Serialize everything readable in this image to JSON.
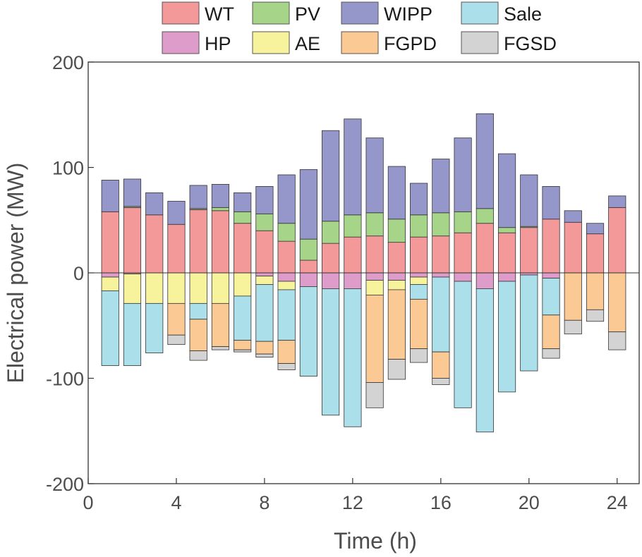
{
  "chart_data": {
    "type": "bar",
    "stacked": true,
    "xlabel": "Time (h)",
    "ylabel": "Electrical power (MW)",
    "xlim": [
      0,
      25
    ],
    "ylim": [
      -200,
      200
    ],
    "x_ticks": [
      0,
      4,
      8,
      12,
      16,
      20,
      24
    ],
    "y_ticks": [
      -200,
      -100,
      0,
      100,
      200
    ],
    "x": [
      1,
      2,
      3,
      4,
      5,
      6,
      7,
      8,
      9,
      10,
      11,
      12,
      13,
      14,
      15,
      16,
      17,
      18,
      19,
      20,
      21,
      22,
      23,
      24
    ],
    "legend_position": "top",
    "grid": false,
    "positive_series": [
      {
        "name": "WT",
        "color": "#f4999a",
        "values": [
          58,
          62,
          55,
          46,
          60,
          59,
          47,
          40,
          30,
          12,
          28,
          34,
          35,
          29,
          34,
          35,
          38,
          47,
          38,
          43,
          51,
          48,
          37,
          62
        ]
      },
      {
        "name": "PV",
        "color": "#a6d488",
        "values": [
          0,
          1,
          0,
          0,
          1,
          3,
          11,
          16,
          17,
          20,
          21,
          21,
          22,
          22,
          21,
          22,
          20,
          14,
          5,
          1,
          0,
          0,
          0,
          0
        ]
      },
      {
        "name": "WIPP",
        "color": "#9596ca",
        "values": [
          30,
          26,
          21,
          22,
          22,
          22,
          18,
          26,
          46,
          66,
          86,
          91,
          71,
          50,
          30,
          51,
          70,
          90,
          70,
          49,
          31,
          11,
          10,
          11
        ]
      }
    ],
    "negative_series": [
      {
        "name": "HP",
        "color": "#de9ccb",
        "values": [
          4,
          1,
          0,
          0,
          0,
          0,
          0,
          3,
          8,
          13,
          15,
          15,
          7,
          7,
          4,
          4,
          8,
          15,
          8,
          2,
          5,
          0,
          0,
          0
        ]
      },
      {
        "name": "AE",
        "color": "#f7f39d",
        "values": [
          13,
          28,
          29,
          29,
          29,
          29,
          22,
          8,
          8,
          0,
          0,
          0,
          14,
          9,
          7,
          0,
          0,
          0,
          0,
          0,
          0,
          0,
          0,
          0
        ]
      },
      {
        "name": "Sale",
        "color": "#abdfea",
        "values": [
          71,
          59,
          47,
          0,
          15,
          0,
          42,
          54,
          48,
          85,
          120,
          131,
          0,
          0,
          14,
          71,
          120,
          136,
          105,
          91,
          35,
          0,
          0,
          0
        ]
      },
      {
        "name": "FGPD",
        "color": "#fbc993",
        "values": [
          0,
          0,
          0,
          30,
          30,
          41,
          9,
          12,
          22,
          0,
          0,
          0,
          83,
          66,
          47,
          25,
          0,
          0,
          0,
          0,
          32,
          45,
          35,
          56
        ]
      },
      {
        "name": "FGSD",
        "color": "#d3d3d3",
        "values": [
          0,
          0,
          0,
          9,
          9,
          3,
          2,
          3,
          6,
          0,
          0,
          0,
          24,
          19,
          13,
          6,
          0,
          0,
          0,
          0,
          9,
          13,
          11,
          17
        ]
      }
    ],
    "legend": {
      "row1": [
        "WT",
        "PV",
        "WIPP",
        "Sale"
      ],
      "row2": [
        "HP",
        "AE",
        "FGPD",
        "FGSD"
      ]
    }
  }
}
